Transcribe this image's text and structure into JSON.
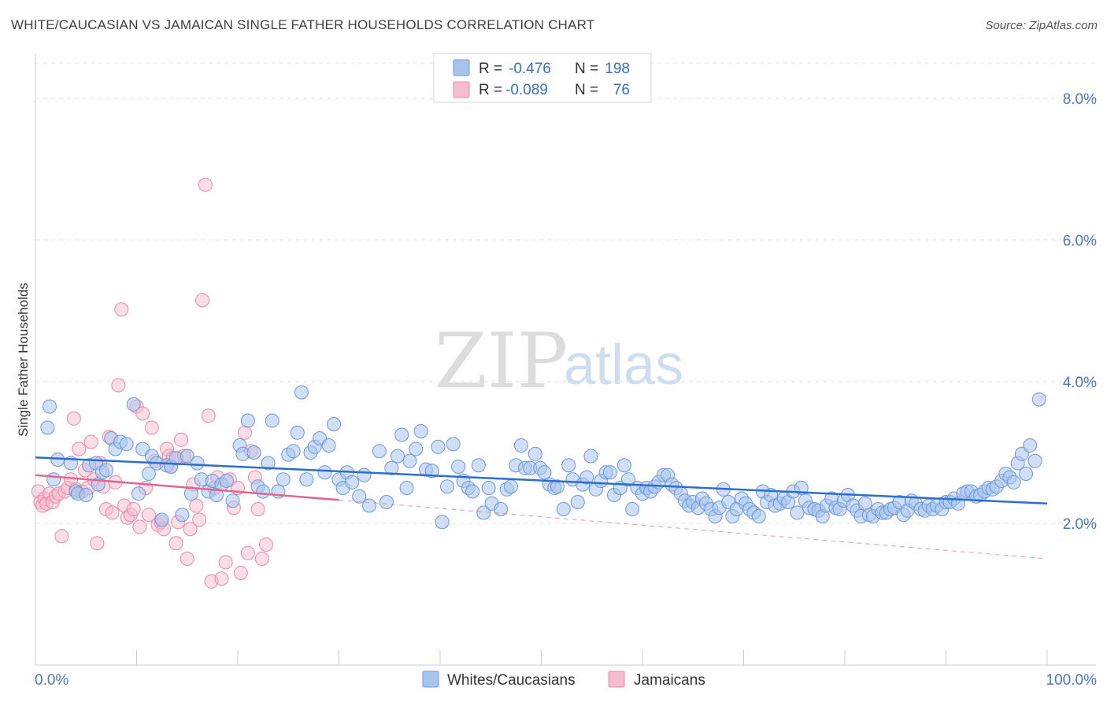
{
  "title": "WHITE/CAUCASIAN VS JAMAICAN SINGLE FATHER HOUSEHOLDS CORRELATION CHART",
  "source": "Source: ZipAtlas.com",
  "watermark": {
    "zip": "ZIP",
    "atlas": "atlas"
  },
  "colors": {
    "blue_fill": "#a9c4ec",
    "blue_stroke": "#6b98d8",
    "blue_line": "#2b6fce",
    "pink_fill": "#f6bcd0",
    "pink_stroke": "#e88aa9",
    "pink_line": "#e06690",
    "axis_label": "#4a78c2"
  },
  "legend": {
    "rows": [
      {
        "r_label": "R =",
        "r_value": "-0.476",
        "n_label": "N =",
        "n_value": "198"
      },
      {
        "r_label": "R =",
        "r_value": "-0.089",
        "n_label": "N =",
        "n_value": "76"
      }
    ]
  },
  "chart_data": {
    "type": "scatter",
    "title": "WHITE/CAUCASIAN VS JAMAICAN SINGLE FATHER HOUSEHOLDS CORRELATION CHART",
    "xlabel": "",
    "ylabel": "Single Father Households",
    "xlim": [
      0,
      100
    ],
    "ylim": [
      0,
      8.5
    ],
    "x_tick_labels": [
      "0.0%",
      "100.0%"
    ],
    "y_ticks": [
      2,
      4,
      6,
      8
    ],
    "y_tick_labels": [
      "2.0%",
      "4.0%",
      "6.0%",
      "8.0%"
    ],
    "grid": true,
    "legend_position": "top-center",
    "series": [
      {
        "name": "Whites/Caucasians",
        "r": -0.476,
        "n": 198,
        "trend": {
          "x": [
            0,
            100
          ],
          "y": [
            2.93,
            2.28
          ]
        },
        "points": [
          [
            1.2,
            3.35
          ],
          [
            1.4,
            3.65
          ],
          [
            1.8,
            2.62
          ],
          [
            2.2,
            2.9
          ],
          [
            3.5,
            2.85
          ],
          [
            4.0,
            2.45
          ],
          [
            4.2,
            2.42
          ],
          [
            5.0,
            2.4
          ],
          [
            5.3,
            2.82
          ],
          [
            6.0,
            2.85
          ],
          [
            6.2,
            2.55
          ],
          [
            6.6,
            2.72
          ],
          [
            7.0,
            2.75
          ],
          [
            7.5,
            3.2
          ],
          [
            7.9,
            3.05
          ],
          [
            8.4,
            3.15
          ],
          [
            9.0,
            3.12
          ],
          [
            9.7,
            3.68
          ],
          [
            10.2,
            2.42
          ],
          [
            10.6,
            3.05
          ],
          [
            11.2,
            2.7
          ],
          [
            11.5,
            2.95
          ],
          [
            12.0,
            2.85
          ],
          [
            12.5,
            2.05
          ],
          [
            13.0,
            2.82
          ],
          [
            13.4,
            2.8
          ],
          [
            13.9,
            2.92
          ],
          [
            14.5,
            2.12
          ],
          [
            15.0,
            2.95
          ],
          [
            15.4,
            2.42
          ],
          [
            16.0,
            2.85
          ],
          [
            16.4,
            2.62
          ],
          [
            17.1,
            2.45
          ],
          [
            17.5,
            2.6
          ],
          [
            17.9,
            2.4
          ],
          [
            18.4,
            2.55
          ],
          [
            18.9,
            2.6
          ],
          [
            19.5,
            2.32
          ],
          [
            20.2,
            3.1
          ],
          [
            20.5,
            2.98
          ],
          [
            21.0,
            3.45
          ],
          [
            21.6,
            3.0
          ],
          [
            22.0,
            2.52
          ],
          [
            22.5,
            2.45
          ],
          [
            23.0,
            2.85
          ],
          [
            23.4,
            3.45
          ],
          [
            24.0,
            2.45
          ],
          [
            24.5,
            2.62
          ],
          [
            25.0,
            2.97
          ],
          [
            25.5,
            3.02
          ],
          [
            25.9,
            3.28
          ],
          [
            26.3,
            3.85
          ],
          [
            26.8,
            2.62
          ],
          [
            27.2,
            3.0
          ],
          [
            27.6,
            3.08
          ],
          [
            28.1,
            3.2
          ],
          [
            28.6,
            2.72
          ],
          [
            29.0,
            3.1
          ],
          [
            29.5,
            3.4
          ],
          [
            30.0,
            2.62
          ],
          [
            30.4,
            2.5
          ],
          [
            30.8,
            2.72
          ],
          [
            31.3,
            2.58
          ],
          [
            32.0,
            2.38
          ],
          [
            32.5,
            2.68
          ],
          [
            33.0,
            2.25
          ],
          [
            34.0,
            3.02
          ],
          [
            34.7,
            2.3
          ],
          [
            35.2,
            2.78
          ],
          [
            35.8,
            2.95
          ],
          [
            36.2,
            3.25
          ],
          [
            36.7,
            2.5
          ],
          [
            37.0,
            2.88
          ],
          [
            37.6,
            3.05
          ],
          [
            38.1,
            3.3
          ],
          [
            38.6,
            2.76
          ],
          [
            39.2,
            2.74
          ],
          [
            39.8,
            3.08
          ],
          [
            40.2,
            2.02
          ],
          [
            40.7,
            2.52
          ],
          [
            41.3,
            3.12
          ],
          [
            41.8,
            2.8
          ],
          [
            42.3,
            2.6
          ],
          [
            42.8,
            2.5
          ],
          [
            43.2,
            2.45
          ],
          [
            43.8,
            2.82
          ],
          [
            44.3,
            2.15
          ],
          [
            44.8,
            2.5
          ],
          [
            45.1,
            2.28
          ],
          [
            46.0,
            2.2
          ],
          [
            46.6,
            2.48
          ],
          [
            47.0,
            2.52
          ],
          [
            47.5,
            2.82
          ],
          [
            48.0,
            3.1
          ],
          [
            48.4,
            2.78
          ],
          [
            48.9,
            2.78
          ],
          [
            49.4,
            2.98
          ],
          [
            49.9,
            2.78
          ],
          [
            50.3,
            2.72
          ],
          [
            50.8,
            2.55
          ],
          [
            51.3,
            2.5
          ],
          [
            51.6,
            2.52
          ],
          [
            52.2,
            2.2
          ],
          [
            52.7,
            2.82
          ],
          [
            53.1,
            2.62
          ],
          [
            53.6,
            2.3
          ],
          [
            54.1,
            2.55
          ],
          [
            54.5,
            2.65
          ],
          [
            54.9,
            2.95
          ],
          [
            55.4,
            2.48
          ],
          [
            55.9,
            2.6
          ],
          [
            56.4,
            2.72
          ],
          [
            56.8,
            2.72
          ],
          [
            57.2,
            2.4
          ],
          [
            57.8,
            2.5
          ],
          [
            58.2,
            2.82
          ],
          [
            58.6,
            2.62
          ],
          [
            59.0,
            2.2
          ],
          [
            59.5,
            2.5
          ],
          [
            60.0,
            2.42
          ],
          [
            60.4,
            2.5
          ],
          [
            60.8,
            2.45
          ],
          [
            61.2,
            2.52
          ],
          [
            61.6,
            2.58
          ],
          [
            62.1,
            2.68
          ],
          [
            62.5,
            2.68
          ],
          [
            62.9,
            2.55
          ],
          [
            63.3,
            2.5
          ],
          [
            63.8,
            2.42
          ],
          [
            64.2,
            2.32
          ],
          [
            64.6,
            2.25
          ],
          [
            65.0,
            2.3
          ],
          [
            65.5,
            2.22
          ],
          [
            65.9,
            2.35
          ],
          [
            66.3,
            2.28
          ],
          [
            66.8,
            2.2
          ],
          [
            67.2,
            2.1
          ],
          [
            67.6,
            2.22
          ],
          [
            68.0,
            2.48
          ],
          [
            68.5,
            2.3
          ],
          [
            68.9,
            2.1
          ],
          [
            69.3,
            2.2
          ],
          [
            69.8,
            2.35
          ],
          [
            70.2,
            2.28
          ],
          [
            70.6,
            2.2
          ],
          [
            71.0,
            2.15
          ],
          [
            71.5,
            2.1
          ],
          [
            71.9,
            2.45
          ],
          [
            72.3,
            2.3
          ],
          [
            72.7,
            2.4
          ],
          [
            73.1,
            2.25
          ],
          [
            73.6,
            2.28
          ],
          [
            74.0,
            2.35
          ],
          [
            74.4,
            2.3
          ],
          [
            74.9,
            2.45
          ],
          [
            75.3,
            2.15
          ],
          [
            75.7,
            2.5
          ],
          [
            76.1,
            2.32
          ],
          [
            76.5,
            2.22
          ],
          [
            77.0,
            2.2
          ],
          [
            77.4,
            2.18
          ],
          [
            77.8,
            2.1
          ],
          [
            78.2,
            2.25
          ],
          [
            78.7,
            2.35
          ],
          [
            79.1,
            2.22
          ],
          [
            79.5,
            2.2
          ],
          [
            79.9,
            2.32
          ],
          [
            80.3,
            2.4
          ],
          [
            80.8,
            2.25
          ],
          [
            81.2,
            2.18
          ],
          [
            81.6,
            2.1
          ],
          [
            82.0,
            2.28
          ],
          [
            82.4,
            2.12
          ],
          [
            82.8,
            2.1
          ],
          [
            83.3,
            2.2
          ],
          [
            83.7,
            2.15
          ],
          [
            84.1,
            2.15
          ],
          [
            84.5,
            2.2
          ],
          [
            84.9,
            2.22
          ],
          [
            85.4,
            2.3
          ],
          [
            85.8,
            2.12
          ],
          [
            86.2,
            2.18
          ],
          [
            86.6,
            2.32
          ],
          [
            87.0,
            2.28
          ],
          [
            87.5,
            2.2
          ],
          [
            87.9,
            2.18
          ],
          [
            88.3,
            2.25
          ],
          [
            88.7,
            2.2
          ],
          [
            89.1,
            2.25
          ],
          [
            89.6,
            2.2
          ],
          [
            90.0,
            2.3
          ],
          [
            90.4,
            2.3
          ],
          [
            90.8,
            2.35
          ],
          [
            91.2,
            2.28
          ],
          [
            91.7,
            2.42
          ],
          [
            92.1,
            2.45
          ],
          [
            92.5,
            2.45
          ],
          [
            93.0,
            2.38
          ],
          [
            93.4,
            2.4
          ],
          [
            93.8,
            2.45
          ],
          [
            94.2,
            2.5
          ],
          [
            94.6,
            2.48
          ],
          [
            95.0,
            2.52
          ],
          [
            95.5,
            2.6
          ],
          [
            95.9,
            2.7
          ],
          [
            96.3,
            2.65
          ],
          [
            96.7,
            2.58
          ],
          [
            97.1,
            2.85
          ],
          [
            97.5,
            2.98
          ],
          [
            97.9,
            2.7
          ],
          [
            98.3,
            3.1
          ],
          [
            98.8,
            2.88
          ],
          [
            99.2,
            3.75
          ]
        ]
      },
      {
        "name": "Jamaicans",
        "r": -0.089,
        "n": 76,
        "trend": {
          "x": [
            0,
            30
          ],
          "y": [
            2.68,
            2.33
          ]
        },
        "trend_extended": {
          "x": [
            30,
            100
          ],
          "y": [
            2.33,
            1.5
          ]
        },
        "points": [
          [
            0.3,
            2.45
          ],
          [
            0.5,
            2.3
          ],
          [
            0.7,
            2.25
          ],
          [
            0.9,
            2.35
          ],
          [
            1.1,
            2.28
          ],
          [
            1.4,
            2.42
          ],
          [
            1.7,
            2.3
          ],
          [
            2.0,
            2.38
          ],
          [
            2.3,
            2.42
          ],
          [
            2.6,
            1.82
          ],
          [
            2.9,
            2.45
          ],
          [
            3.2,
            2.5
          ],
          [
            3.5,
            2.62
          ],
          [
            3.8,
            3.48
          ],
          [
            4.0,
            2.48
          ],
          [
            4.3,
            3.05
          ],
          [
            4.6,
            2.45
          ],
          [
            4.9,
            2.75
          ],
          [
            5.2,
            2.5
          ],
          [
            5.5,
            3.15
          ],
          [
            5.8,
            2.62
          ],
          [
            6.1,
            1.72
          ],
          [
            6.4,
            2.85
          ],
          [
            6.7,
            2.52
          ],
          [
            7.0,
            2.2
          ],
          [
            7.3,
            3.22
          ],
          [
            7.6,
            2.15
          ],
          [
            7.9,
            2.58
          ],
          [
            8.2,
            3.95
          ],
          [
            8.5,
            5.02
          ],
          [
            8.8,
            2.25
          ],
          [
            9.1,
            2.08
          ],
          [
            9.4,
            2.12
          ],
          [
            9.7,
            2.2
          ],
          [
            10.0,
            3.65
          ],
          [
            10.3,
            1.95
          ],
          [
            10.6,
            3.55
          ],
          [
            10.9,
            2.5
          ],
          [
            11.2,
            2.12
          ],
          [
            11.5,
            3.35
          ],
          [
            11.8,
            2.88
          ],
          [
            12.1,
            1.98
          ],
          [
            12.4,
            2.02
          ],
          [
            12.7,
            1.92
          ],
          [
            13.0,
            3.05
          ],
          [
            13.2,
            2.95
          ],
          [
            13.4,
            2.8
          ],
          [
            13.6,
            2.92
          ],
          [
            13.9,
            1.72
          ],
          [
            14.1,
            2.02
          ],
          [
            14.4,
            3.18
          ],
          [
            14.7,
            2.95
          ],
          [
            15.0,
            1.5
          ],
          [
            15.3,
            1.92
          ],
          [
            15.6,
            2.55
          ],
          [
            15.9,
            2.25
          ],
          [
            16.2,
            2.05
          ],
          [
            16.5,
            5.15
          ],
          [
            16.8,
            6.78
          ],
          [
            17.1,
            3.52
          ],
          [
            17.4,
            1.18
          ],
          [
            17.7,
            2.5
          ],
          [
            18.0,
            2.65
          ],
          [
            18.4,
            1.22
          ],
          [
            18.8,
            1.45
          ],
          [
            19.2,
            2.62
          ],
          [
            19.6,
            2.22
          ],
          [
            20.0,
            2.5
          ],
          [
            20.3,
            1.3
          ],
          [
            20.7,
            3.28
          ],
          [
            21.0,
            1.58
          ],
          [
            21.3,
            3.02
          ],
          [
            21.7,
            2.65
          ],
          [
            22.0,
            2.2
          ],
          [
            22.4,
            1.5
          ],
          [
            22.8,
            1.7
          ]
        ]
      }
    ]
  },
  "bottom_legend": [
    {
      "label": "Whites/Caucasians"
    },
    {
      "label": "Jamaicans"
    }
  ]
}
